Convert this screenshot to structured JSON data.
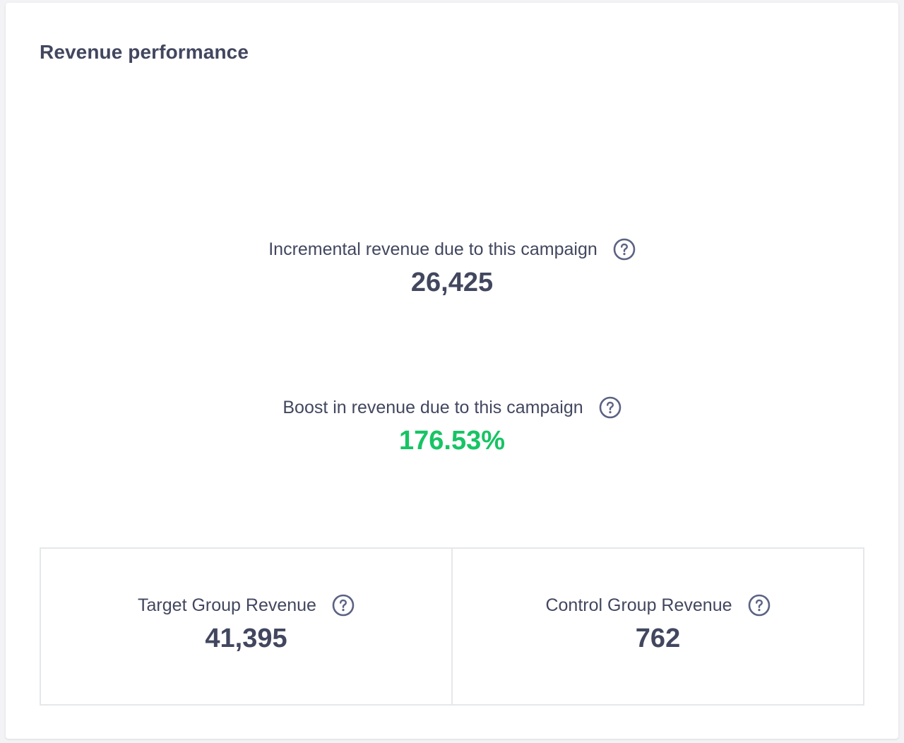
{
  "card": {
    "title": "Revenue performance"
  },
  "metrics": {
    "incremental": {
      "label": "Incremental revenue due to this campaign",
      "value": "26,425",
      "icon": "help-circle-icon"
    },
    "boost": {
      "label": "Boost in revenue due to this campaign",
      "value": "176.53%",
      "icon": "help-circle-icon"
    }
  },
  "groups": {
    "target": {
      "label": "Target Group Revenue",
      "value": "41,395",
      "icon": "help-circle-icon"
    },
    "control": {
      "label": "Control Group Revenue",
      "value": "762",
      "icon": "help-circle-icon"
    }
  },
  "colors": {
    "text": "#42475f",
    "positive": "#17c464",
    "border": "#e6e7ea",
    "icon": "#5b6283"
  }
}
